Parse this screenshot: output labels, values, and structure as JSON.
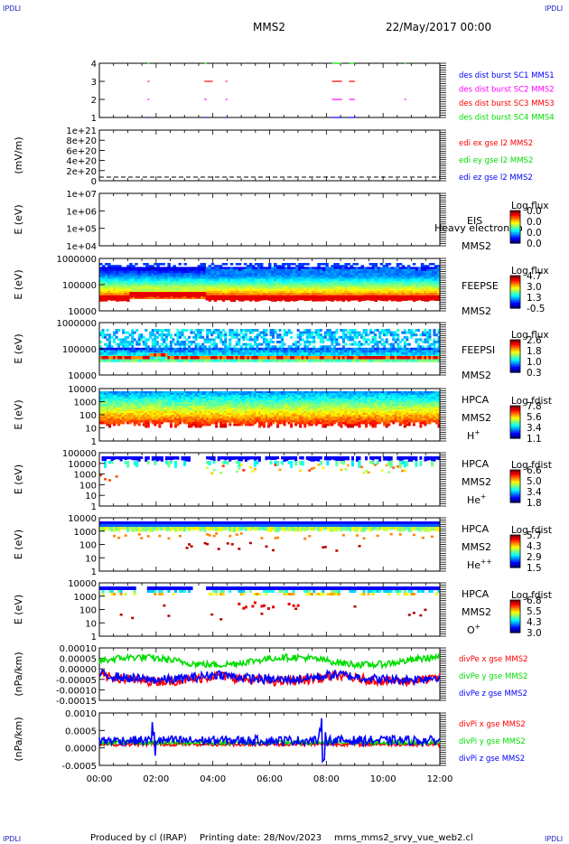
{
  "corner_labels": {
    "tl": "IPDLI",
    "tr": "IPDLI",
    "bl": "IPDLI",
    "br": "IPDLI"
  },
  "header": {
    "spacecraft": "MMS2",
    "date": "22/May/2017 00:00"
  },
  "footer": {
    "produced_by": "Produced by cl (IRAP)",
    "printing_date": "Printing date: 28/Nov/2023",
    "file": "mms_mms2_srvy_vue_web2.cl"
  },
  "colors": {
    "red": "#ff0000",
    "green": "#00dd00",
    "blue": "#0000ff",
    "magenta": "#ff00ff"
  },
  "chart_data": [
    {
      "type": "scatter",
      "id": "burst",
      "ylim": [
        0.5,
        4.5
      ],
      "ticks": [
        "1",
        "2",
        "3",
        "4"
      ],
      "legend": [
        {
          "text": "des dist burst SC1 MMS1",
          "color": "#0000ff"
        },
        {
          "text": "des dist burst SC2 MMS2",
          "color": "#ff00ff"
        },
        {
          "text": "des dist burst SC3 MMS3",
          "color": "#ff0000"
        },
        {
          "text": "des dist burst SC4 MMS4",
          "color": "#00dd00"
        }
      ],
      "intervals_hours": [
        [
          1.7,
          1.75
        ],
        [
          3.7,
          3.78
        ],
        [
          3.78,
          4.0
        ],
        [
          4.45,
          4.5
        ],
        [
          8.2,
          8.55
        ],
        [
          8.8,
          9.0
        ],
        [
          10.75,
          10.8
        ]
      ]
    },
    {
      "type": "line",
      "id": "efield",
      "ylabel": "(mV/m)",
      "ticks": [
        "0",
        "2e+20",
        "4e+20",
        "6e+20",
        "8e+20",
        "1e+21"
      ],
      "ylim": [
        0,
        1e+21
      ],
      "legend": [
        {
          "text": "edi ex gse l2 MMS2",
          "color": "#ff0000"
        },
        {
          "text": "edi ey gse l2 MMS2",
          "color": "#00dd00"
        },
        {
          "text": "edi ez gse l2 MMS2",
          "color": "#0000ff"
        }
      ]
    },
    {
      "type": "heatmap",
      "id": "eis",
      "ylabel": "E (eV)",
      "ticks": [
        "1e+04",
        "1e+05",
        "1e+06",
        "1e+07"
      ],
      "inst": [
        "EIS",
        "MMS2"
      ],
      "overlay_text": "Heavy electron to",
      "cbar_title": "Log flux",
      "cbar_ticks": [
        "0.0",
        "0.0",
        "0.0",
        "0.0"
      ]
    },
    {
      "type": "heatmap",
      "id": "feepse",
      "ylabel": "E (eV)",
      "ticks": [
        "10000",
        "100000",
        "1000000"
      ],
      "inst": [
        "FEEPSE",
        "MMS2"
      ],
      "cbar_title": "Log flux",
      "cbar_ticks": [
        "4.7",
        "3.0",
        "1.3",
        "-0.5"
      ]
    },
    {
      "type": "heatmap",
      "id": "feepsi",
      "ylabel": "E (eV)",
      "ticks": [
        "10000",
        "100000",
        "1000000"
      ],
      "inst": [
        "FEEPSI",
        "MMS2"
      ],
      "cbar_title": "Log flux",
      "cbar_ticks": [
        "2.6",
        "1.8",
        "1.0",
        "0.3"
      ]
    },
    {
      "type": "heatmap",
      "id": "hpca_h",
      "ylabel": "E (eV)",
      "ticks": [
        "1",
        "10",
        "100",
        "1000",
        "10000"
      ],
      "inst": [
        "HPCA",
        "MMS2"
      ],
      "species": "H",
      "species_sup": "+",
      "cbar_title": "Log fdist",
      "cbar_ticks": [
        "7.8",
        "5.6",
        "3.4",
        "1.1"
      ]
    },
    {
      "type": "heatmap",
      "id": "hpca_he",
      "ylabel": "E (eV)",
      "ticks": [
        "1",
        "10",
        "100",
        "1000",
        "10000",
        "100000"
      ],
      "inst": [
        "HPCA",
        "MMS2"
      ],
      "species": "He",
      "species_sup": "+",
      "cbar_title": "Log fdist",
      "cbar_ticks": [
        "6.6",
        "5.0",
        "3.4",
        "1.8"
      ]
    },
    {
      "type": "heatmap",
      "id": "hpca_he2",
      "ylabel": "E (eV)",
      "ticks": [
        "1",
        "10",
        "100",
        "1000",
        "10000"
      ],
      "inst": [
        "HPCA",
        "MMS2"
      ],
      "species": "He",
      "species_sup": "++",
      "cbar_title": "Log fdist",
      "cbar_ticks": [
        "5.7",
        "4.3",
        "2.9",
        "1.5"
      ]
    },
    {
      "type": "heatmap",
      "id": "hpca_o",
      "ylabel": "E (eV)",
      "ticks": [
        "1",
        "10",
        "100",
        "1000",
        "10000"
      ],
      "inst": [
        "HPCA",
        "MMS2"
      ],
      "species": "O",
      "species_sup": "+",
      "cbar_title": "Log fdist",
      "cbar_ticks": [
        "6.8",
        "5.5",
        "4.3",
        "3.0"
      ]
    },
    {
      "type": "line",
      "id": "divpe",
      "ylabel": "(nPa/km)",
      "ticks": [
        "-0.00015",
        "-0.00010",
        "-0.00005",
        "0.00000",
        "0.00005",
        "0.00010"
      ],
      "ylim": [
        -0.00016,
        0.00012
      ],
      "legend": [
        {
          "text": "divPe x gse MMS2",
          "color": "#ff0000"
        },
        {
          "text": "divPe y gse MMS2",
          "color": "#00dd00"
        },
        {
          "text": "divPe z gse MMS2",
          "color": "#0000ff"
        }
      ]
    },
    {
      "type": "line",
      "id": "divpi",
      "ylabel": "(nPa/km)",
      "ticks": [
        "-0.0005",
        "0.0000",
        "0.0005",
        "0.0010"
      ],
      "ylim": [
        -0.0009,
        0.0011
      ],
      "legend": [
        {
          "text": "divPi x gse MMS2",
          "color": "#ff0000"
        },
        {
          "text": "divPi y gse MMS2",
          "color": "#00dd00"
        },
        {
          "text": "divPi z gse MMS2",
          "color": "#0000ff"
        }
      ]
    }
  ],
  "time_axis": {
    "range_hours": [
      0,
      12
    ],
    "ticks": [
      "00:00",
      "02:00",
      "04:00",
      "06:00",
      "08:00",
      "10:00",
      "12:00"
    ]
  }
}
